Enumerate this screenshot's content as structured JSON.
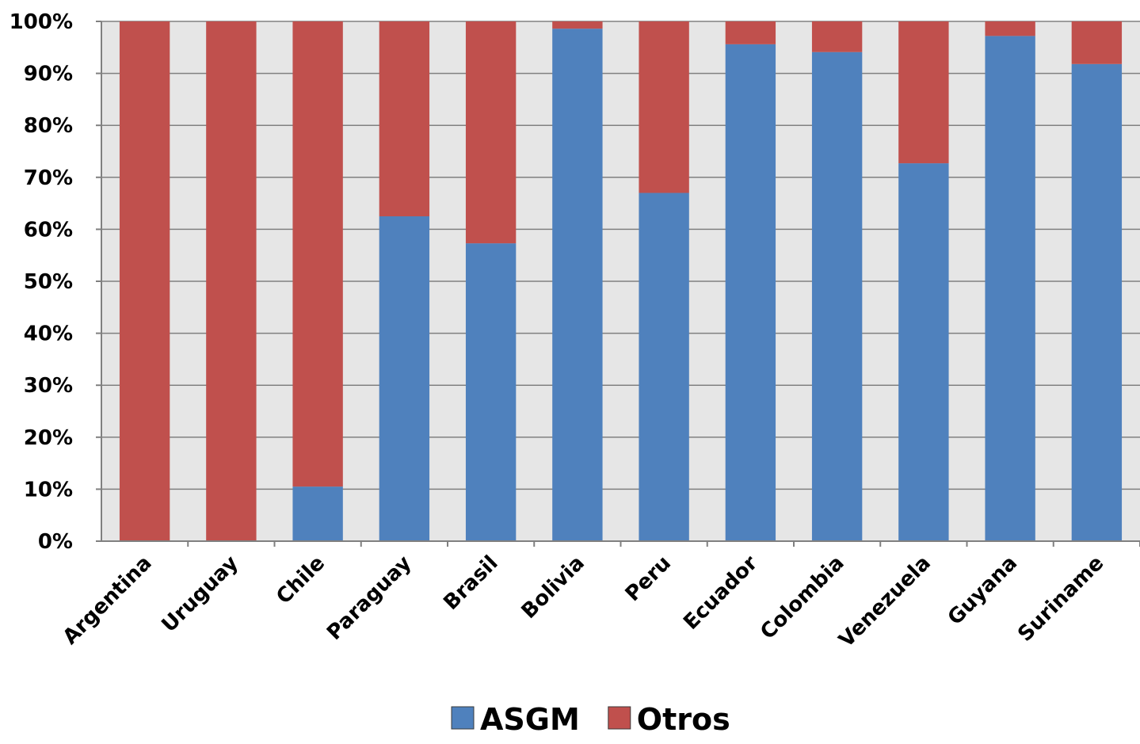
{
  "chart_data": {
    "type": "bar",
    "stacked": true,
    "percent_stacked": true,
    "title": "",
    "xlabel": "",
    "ylabel": "",
    "ylim": [
      0,
      100
    ],
    "y_ticks": [
      "0%",
      "10%",
      "20%",
      "30%",
      "40%",
      "50%",
      "60%",
      "70%",
      "80%",
      "90%",
      "100%"
    ],
    "grid": true,
    "plot_background": "#e6e6e6",
    "legend_position": "bottom",
    "categories": [
      "Argentina",
      "Uruguay",
      "Chile",
      "Paraguay",
      "Brasil",
      "Bolivia",
      "Peru",
      "Ecuador",
      "Colombia",
      "Venezuela",
      "Guyana",
      "Suriname"
    ],
    "series": [
      {
        "name": "ASGM",
        "color": "#4f81bd",
        "values": [
          0,
          0,
          10.5,
          62.5,
          57.3,
          98.6,
          67.0,
          95.6,
          94.1,
          72.7,
          97.2,
          91.8
        ]
      },
      {
        "name": "Otros",
        "color": "#c0504d",
        "values": [
          100,
          100,
          89.5,
          37.5,
          42.7,
          1.4,
          33.0,
          4.4,
          5.9,
          27.3,
          2.8,
          8.2
        ]
      }
    ]
  }
}
